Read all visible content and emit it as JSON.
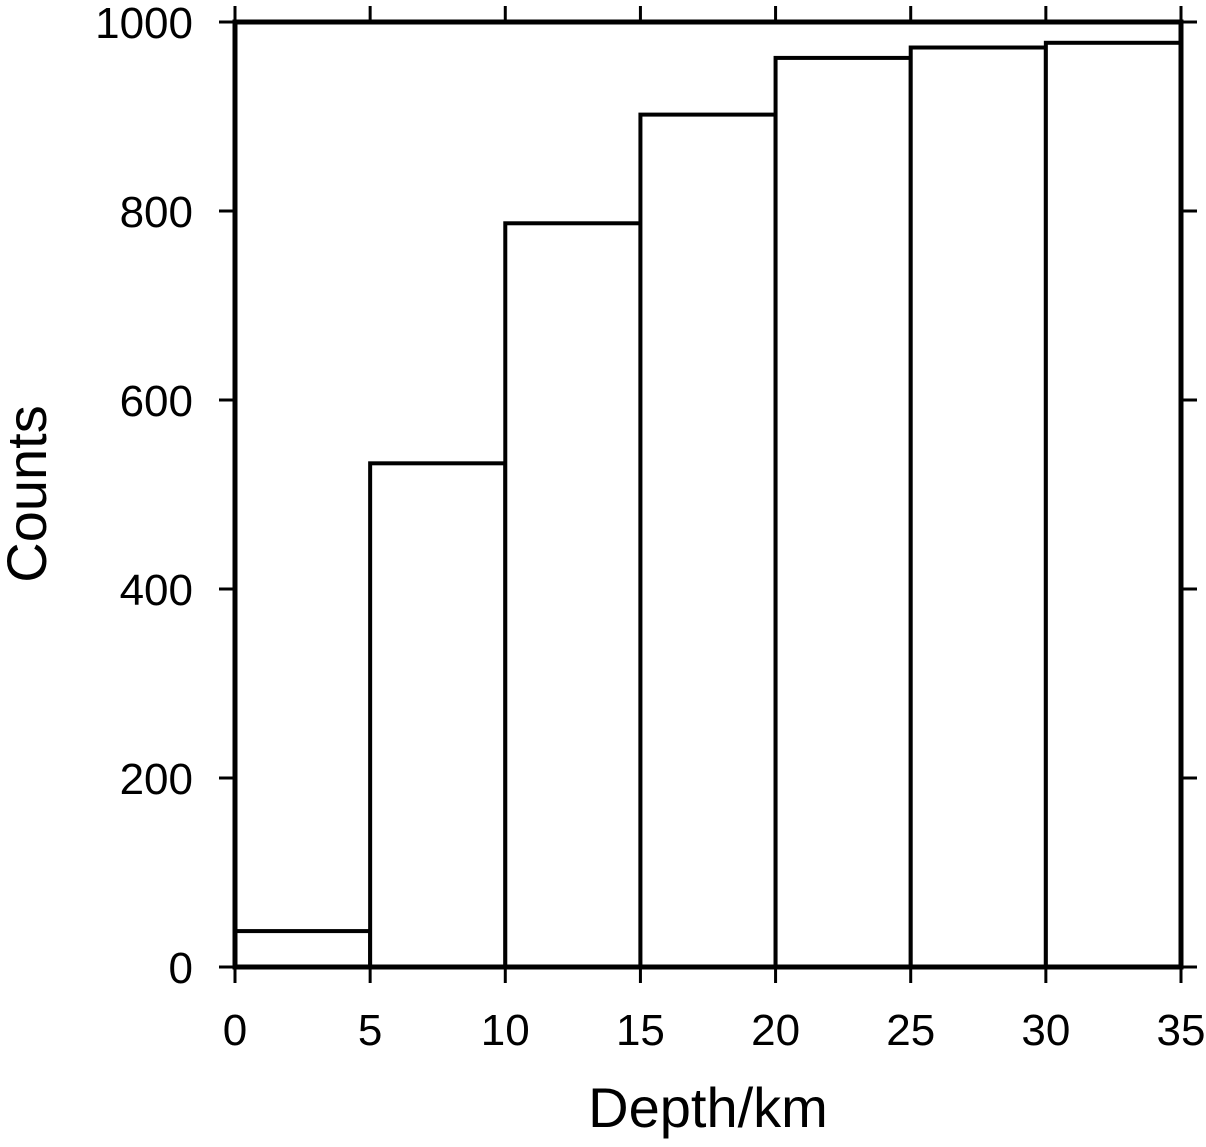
{
  "chart_data": {
    "type": "bar",
    "title": "",
    "xlabel": "Depth/km",
    "ylabel": "Counts",
    "bins": [
      {
        "x0": 0,
        "x1": 5,
        "value": 38
      },
      {
        "x0": 5,
        "x1": 10,
        "value": 533
      },
      {
        "x0": 10,
        "x1": 15,
        "value": 787
      },
      {
        "x0": 15,
        "x1": 20,
        "value": 902
      },
      {
        "x0": 20,
        "x1": 25,
        "value": 962
      },
      {
        "x0": 25,
        "x1": 30,
        "value": 973
      },
      {
        "x0": 30,
        "x1": 35,
        "value": 978
      }
    ],
    "xlim": [
      0,
      35
    ],
    "ylim": [
      0,
      1000
    ],
    "xticks": [
      "0",
      "5",
      "10",
      "15",
      "20",
      "25",
      "30",
      "35"
    ],
    "yticks": [
      "0",
      "200",
      "400",
      "600",
      "800",
      "1000"
    ],
    "grid": false,
    "bar_fill": "#ffffff",
    "bar_stroke": "#000000"
  }
}
